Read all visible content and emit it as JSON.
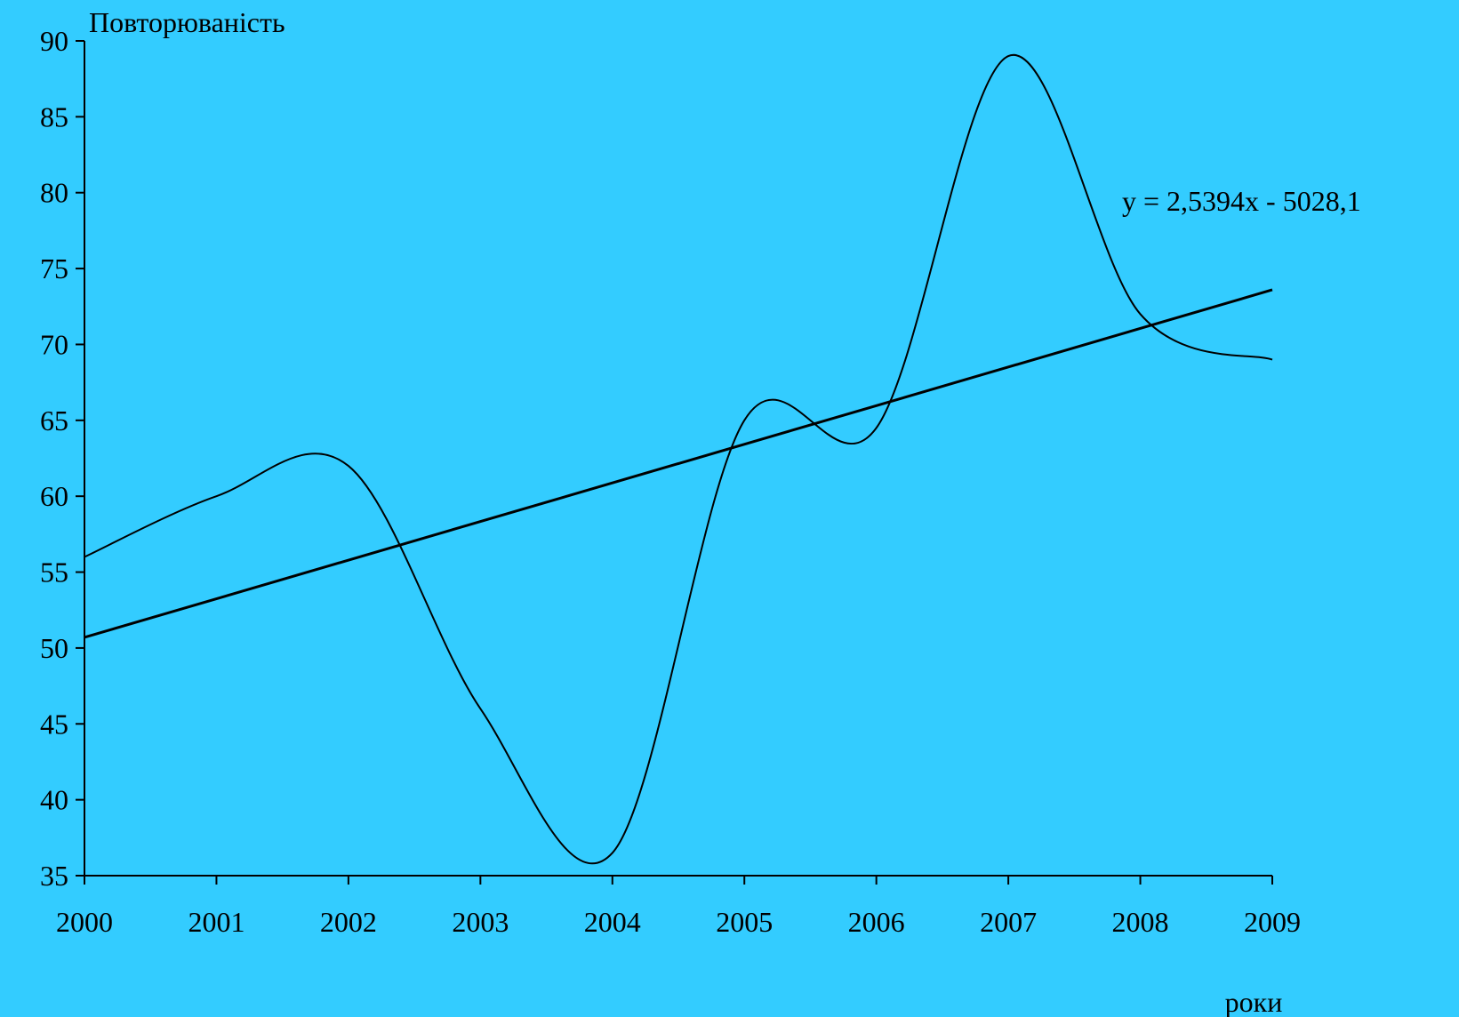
{
  "colors": {
    "background": "#33ccff",
    "ink": "#000000"
  },
  "chart_data": {
    "type": "line",
    "title": "",
    "ylabel": "Повторюваність",
    "xlabel": "роки",
    "xlim": [
      2000,
      2009
    ],
    "ylim": [
      35,
      90
    ],
    "x_ticks": [
      "2000",
      "2001",
      "2002",
      "2003",
      "2004",
      "2005",
      "2006",
      "2007",
      "2008",
      "2009"
    ],
    "y_ticks": [
      "35",
      "40",
      "45",
      "50",
      "55",
      "60",
      "65",
      "70",
      "75",
      "80",
      "85",
      "90"
    ],
    "grid": false,
    "legend": "none",
    "series": [
      {
        "x": [
          2000,
          2001,
          2002,
          2003,
          2004,
          2005,
          2006,
          2007,
          2008,
          2009
        ],
        "values": [
          56.0,
          60.0,
          62.0,
          46.0,
          36.5,
          65.0,
          64.5,
          89.0,
          72.0,
          69.0
        ],
        "smooth": true
      },
      {
        "x": [
          2000,
          2009
        ],
        "values": [
          50.7,
          73.6
        ],
        "trendline": true
      }
    ],
    "annotations": [
      {
        "text": "y = 2,5394x - 5028,1"
      }
    ]
  }
}
